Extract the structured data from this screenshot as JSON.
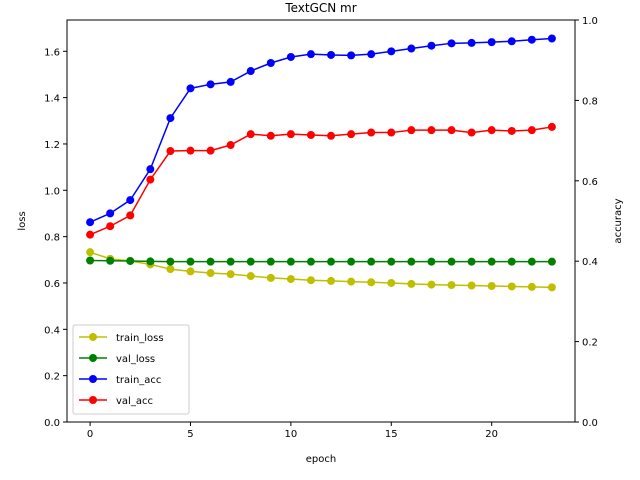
{
  "chart_data": {
    "type": "line",
    "title": "TextGCN mr",
    "xlabel": "epoch",
    "ylabel_left": "loss",
    "ylabel_right": "accuracy",
    "xlim": [
      -1.15,
      24.15
    ],
    "ylim_left": [
      0,
      1.735
    ],
    "ylim_right": [
      0,
      1.0
    ],
    "xticks": [
      0,
      5,
      10,
      15,
      20
    ],
    "yticks_left": [
      0.0,
      0.2,
      0.4,
      0.6,
      0.8,
      1.0,
      1.2,
      1.4,
      1.6
    ],
    "yticks_right": [
      0.0,
      0.2,
      0.4,
      0.6,
      0.8,
      1.0
    ],
    "legend_position": "lower-left",
    "grid": false,
    "x": [
      0,
      1,
      2,
      3,
      4,
      5,
      6,
      7,
      8,
      9,
      10,
      11,
      12,
      13,
      14,
      15,
      16,
      17,
      18,
      19,
      20,
      21,
      22,
      23
    ],
    "series": [
      {
        "name": "train_loss",
        "axis": "left",
        "color": "#bfbf00",
        "values": [
          0.733,
          0.704,
          0.695,
          0.68,
          0.66,
          0.65,
          0.643,
          0.638,
          0.63,
          0.622,
          0.617,
          0.612,
          0.609,
          0.606,
          0.603,
          0.6,
          0.596,
          0.593,
          0.591,
          0.589,
          0.587,
          0.585,
          0.583,
          0.581
        ]
      },
      {
        "name": "val_loss",
        "axis": "left",
        "color": "#008000",
        "values": [
          0.697,
          0.696,
          0.695,
          0.693,
          0.692,
          0.692,
          0.692,
          0.692,
          0.692,
          0.692,
          0.692,
          0.692,
          0.692,
          0.692,
          0.692,
          0.692,
          0.692,
          0.692,
          0.692,
          0.692,
          0.692,
          0.692,
          0.692,
          0.692
        ]
      },
      {
        "name": "train_acc",
        "axis": "right",
        "color": "#0000ff",
        "values": [
          0.497,
          0.519,
          0.552,
          0.629,
          0.756,
          0.83,
          0.84,
          0.846,
          0.873,
          0.893,
          0.908,
          0.915,
          0.913,
          0.912,
          0.915,
          0.922,
          0.929,
          0.936,
          0.942,
          0.943,
          0.945,
          0.947,
          0.951,
          0.954
        ]
      },
      {
        "name": "val_acc",
        "axis": "right",
        "color": "#ff0000",
        "values": [
          0.466,
          0.487,
          0.514,
          0.603,
          0.674,
          0.675,
          0.675,
          0.689,
          0.716,
          0.712,
          0.716,
          0.714,
          0.712,
          0.716,
          0.72,
          0.72,
          0.726,
          0.726,
          0.726,
          0.72,
          0.726,
          0.724,
          0.726,
          0.734
        ]
      }
    ]
  }
}
